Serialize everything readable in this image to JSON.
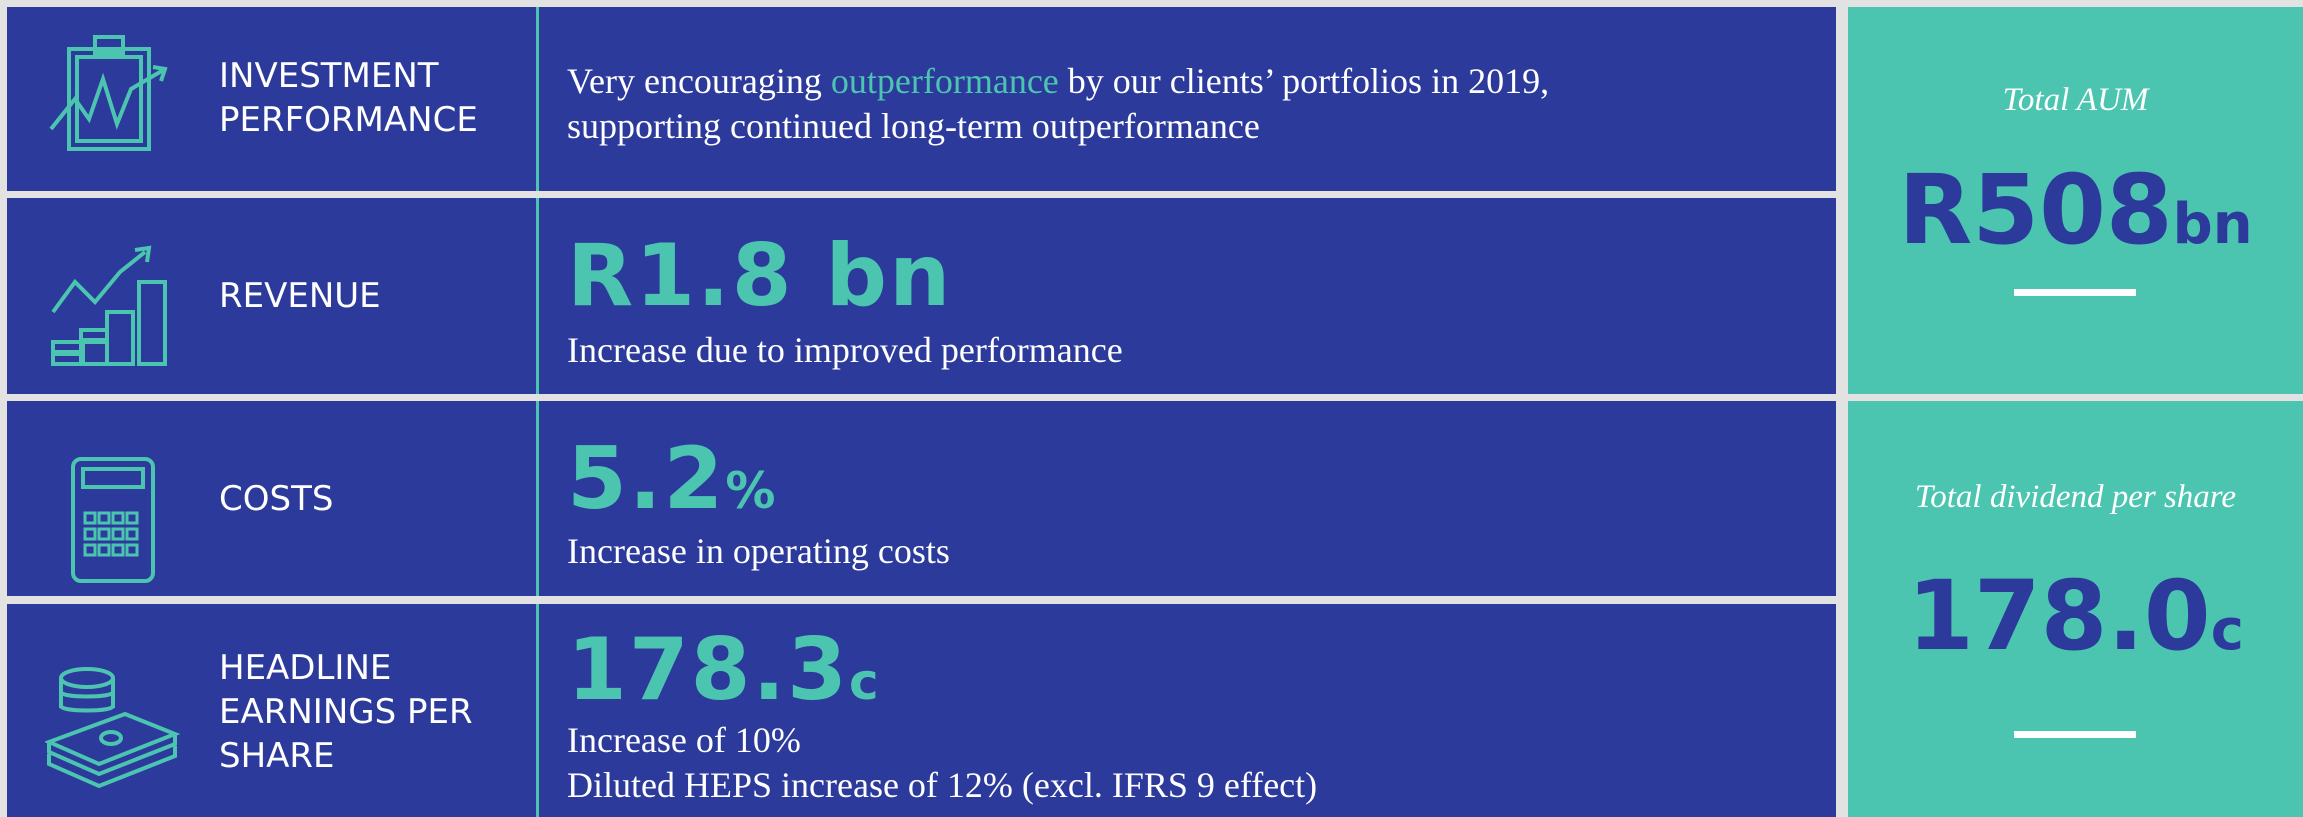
{
  "rows": [
    {
      "label": [
        "INVESTMENT",
        "PERFORMANCE"
      ],
      "description": [
        [
          "Very encouraging ",
          "outperformance",
          " by our clients’ portfolios in 2019,"
        ],
        [
          "supporting continued long-term outperformance"
        ]
      ]
    },
    {
      "label": [
        "REVENUE"
      ],
      "headline": [
        "R1.8 bn"
      ],
      "description": [
        [
          "Increase due to improved performance"
        ]
      ]
    },
    {
      "label": [
        "COSTS"
      ],
      "headline": [
        "5.2",
        "%"
      ],
      "description": [
        [
          "Increase in operating costs"
        ]
      ]
    },
    {
      "label": [
        "HEADLINE",
        "EARNINGS PER",
        "SHARE"
      ],
      "headline": [
        "178.3",
        "c"
      ],
      "description": [
        [
          "Increase of 10%"
        ],
        [
          "Diluted HEPS increase of 12% (excl. IFRS 9 effect)"
        ]
      ]
    }
  ],
  "summary": [
    {
      "title": "Total AUM",
      "value": [
        "R508",
        "bn"
      ]
    },
    {
      "title": "Total dividend per share",
      "value": [
        "178.0",
        "c"
      ]
    }
  ]
}
